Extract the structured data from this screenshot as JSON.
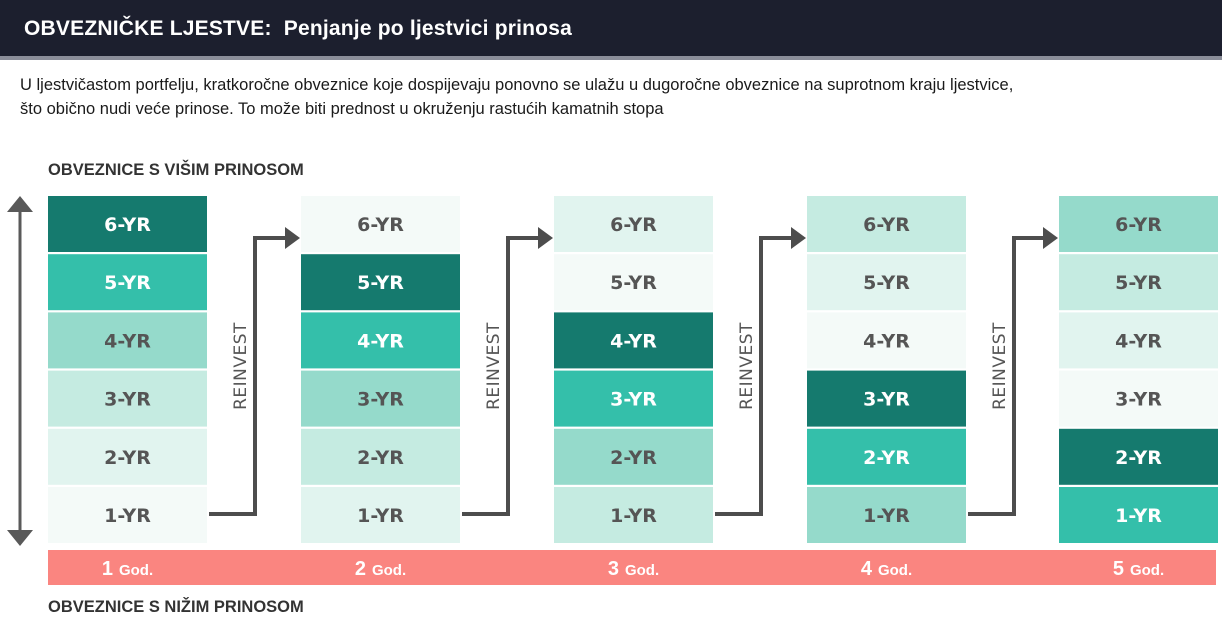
{
  "title": {
    "main": "OBVEZNIČKE LJESTVE:",
    "sub": "Penjanje po ljestvici prinosa"
  },
  "description": [
    "U ljestvičastom portfelju, kratkoročne obveznice koje dospijevaju ponovno se ulažu u dugoročne obveznice na suprotnom kraju ljestvice,",
    "što obično nudi veće prinose. To može biti prednost u okruženju rastućih kamatnih stopa"
  ],
  "axis": {
    "top_label": "OBVEZNICE S VIŠIM PRINOSOM",
    "bottom_label": "OBVEZNICE S NIŽIM PRINOSOM"
  },
  "maturities": [
    "6-YR",
    "5-YR",
    "4-YR",
    "3-YR",
    "2-YR",
    "1-YR"
  ],
  "reinvest_label": "REINVEST",
  "year_unit": "God.",
  "years": [
    {
      "number": "1",
      "shades": [
        1,
        2,
        3,
        4,
        5,
        6
      ]
    },
    {
      "number": "2",
      "shades": [
        6,
        1,
        2,
        3,
        4,
        5
      ]
    },
    {
      "number": "3",
      "shades": [
        5,
        6,
        1,
        2,
        3,
        4
      ]
    },
    {
      "number": "4",
      "shades": [
        4,
        5,
        6,
        1,
        2,
        3
      ]
    },
    {
      "number": "5",
      "shades": [
        3,
        4,
        5,
        6,
        1,
        2
      ]
    }
  ],
  "colors": {
    "shade_1": "#157a6e",
    "shade_2": "#34bfaa",
    "shade_3": "#95dacb",
    "shade_4": "#c5ebe1",
    "shade_5": "#e1f4ef",
    "shade_6": "#f4faf8",
    "text_light": "#ffffff",
    "text_dark": "#555555",
    "year_bar": "#fa8580",
    "arrow": "#4d4d4d",
    "axis_arrow": "#595959"
  }
}
